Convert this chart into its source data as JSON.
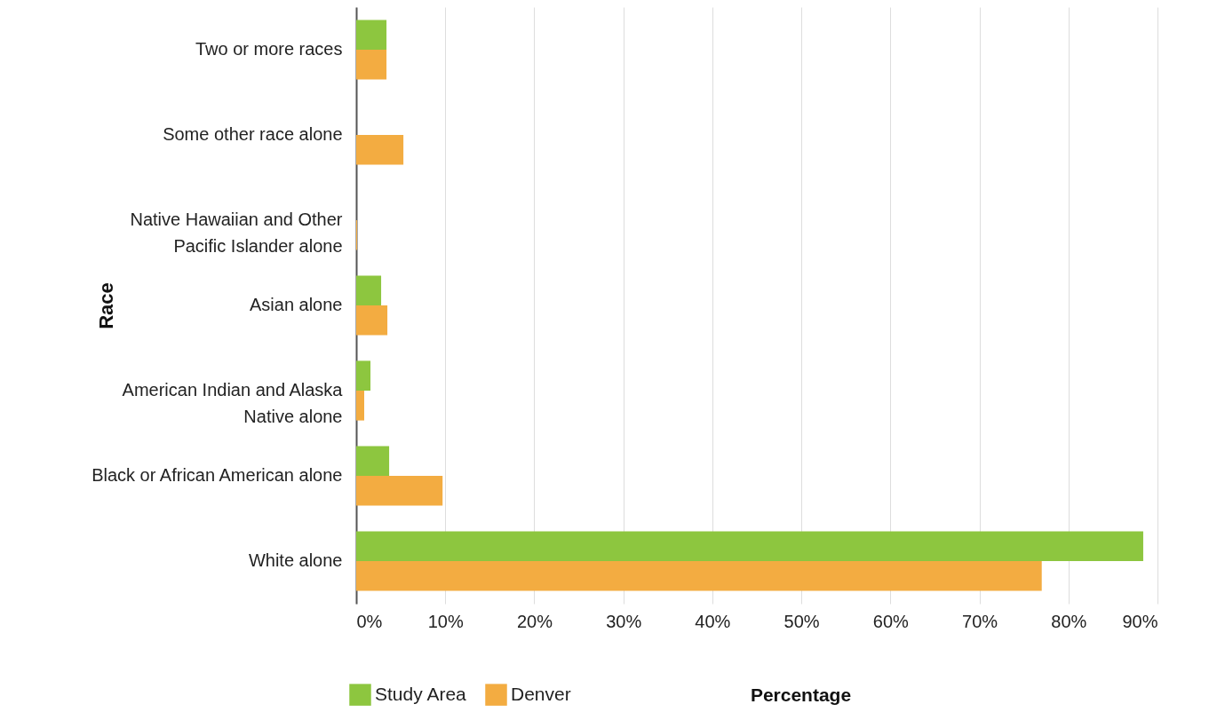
{
  "chart_data": {
    "type": "bar",
    "orientation": "horizontal",
    "xlabel": "Percentage",
    "ylabel": "Race",
    "categories": [
      "Two or more races",
      "Some other race alone",
      "Native Hawaiian and Other Pacific Islander alone",
      "Asian alone",
      "American Indian and Alaska Native alone",
      "Black or African American alone",
      "White alone"
    ],
    "series": [
      {
        "name": "Study Area",
        "color": "#8dc63f",
        "values": [
          3.4,
          0,
          0,
          2.8,
          1.6,
          3.7,
          88.4
        ]
      },
      {
        "name": "Denver",
        "color": "#f3ac41",
        "values": [
          3.4,
          5.3,
          0.1,
          3.5,
          0.9,
          9.7,
          77.0
        ]
      }
    ],
    "xlim": [
      0,
      90
    ],
    "xticks": [
      {
        "value": 0,
        "label": "0%"
      },
      {
        "value": 10,
        "label": "10%"
      },
      {
        "value": 20,
        "label": "20%"
      },
      {
        "value": 30,
        "label": "30%"
      },
      {
        "value": 40,
        "label": "40%"
      },
      {
        "value": 50,
        "label": "50%"
      },
      {
        "value": 60,
        "label": "60%"
      },
      {
        "value": 70,
        "label": "70%"
      },
      {
        "value": 80,
        "label": "80%"
      },
      {
        "value": 90,
        "label": "90%"
      }
    ],
    "grid": "x",
    "legend": "bottom"
  }
}
